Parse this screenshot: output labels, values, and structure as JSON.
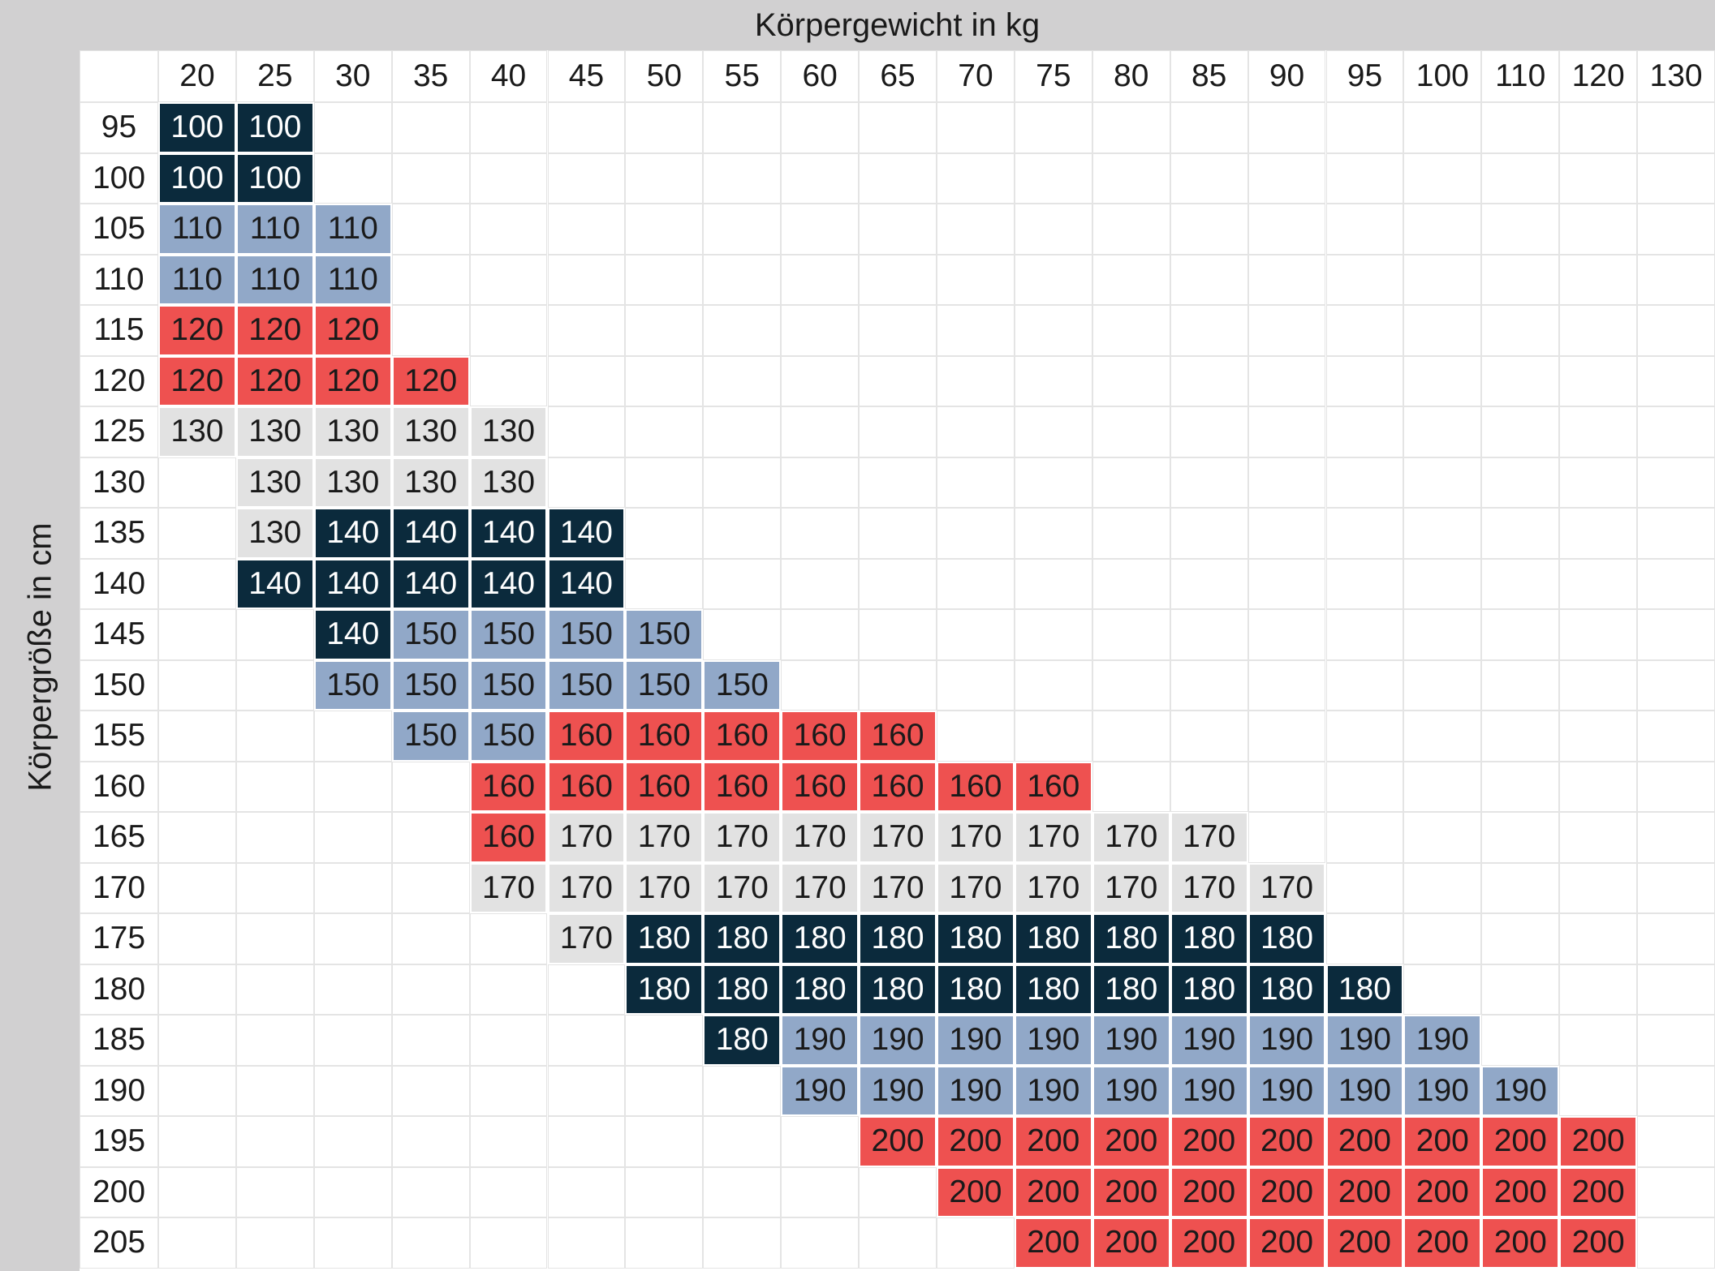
{
  "title_x": "Körpergewicht in kg",
  "title_y": "Körpergröße in cm",
  "palette": [
    {
      "fill": "#0b2a3c",
      "text": "#ffffff"
    },
    {
      "fill": "#91a8c8",
      "text": "#1a1a1a"
    },
    {
      "fill": "#ee5150",
      "text": "#1a1a1a"
    },
    {
      "fill": "#e2e2e2",
      "text": "#1a1a1a"
    }
  ],
  "table": {
    "columns": [
      "20",
      "25",
      "30",
      "35",
      "40",
      "45",
      "50",
      "55",
      "60",
      "65",
      "70",
      "75",
      "80",
      "85",
      "90",
      "95",
      "100",
      "110",
      "120",
      "130"
    ],
    "rows": [
      {
        "label": "95",
        "cells": [
          100,
          100,
          null,
          null,
          null,
          null,
          null,
          null,
          null,
          null,
          null,
          null,
          null,
          null,
          null,
          null,
          null,
          null,
          null,
          null
        ]
      },
      {
        "label": "100",
        "cells": [
          100,
          100,
          null,
          null,
          null,
          null,
          null,
          null,
          null,
          null,
          null,
          null,
          null,
          null,
          null,
          null,
          null,
          null,
          null,
          null
        ]
      },
      {
        "label": "105",
        "cells": [
          110,
          110,
          110,
          null,
          null,
          null,
          null,
          null,
          null,
          null,
          null,
          null,
          null,
          null,
          null,
          null,
          null,
          null,
          null,
          null
        ]
      },
      {
        "label": "110",
        "cells": [
          110,
          110,
          110,
          null,
          null,
          null,
          null,
          null,
          null,
          null,
          null,
          null,
          null,
          null,
          null,
          null,
          null,
          null,
          null,
          null
        ]
      },
      {
        "label": "115",
        "cells": [
          120,
          120,
          120,
          null,
          null,
          null,
          null,
          null,
          null,
          null,
          null,
          null,
          null,
          null,
          null,
          null,
          null,
          null,
          null,
          null
        ]
      },
      {
        "label": "120",
        "cells": [
          120,
          120,
          120,
          120,
          null,
          null,
          null,
          null,
          null,
          null,
          null,
          null,
          null,
          null,
          null,
          null,
          null,
          null,
          null,
          null
        ]
      },
      {
        "label": "125",
        "cells": [
          130,
          130,
          130,
          130,
          130,
          null,
          null,
          null,
          null,
          null,
          null,
          null,
          null,
          null,
          null,
          null,
          null,
          null,
          null,
          null
        ]
      },
      {
        "label": "130",
        "cells": [
          null,
          130,
          130,
          130,
          130,
          null,
          null,
          null,
          null,
          null,
          null,
          null,
          null,
          null,
          null,
          null,
          null,
          null,
          null,
          null
        ]
      },
      {
        "label": "135",
        "cells": [
          null,
          130,
          140,
          140,
          140,
          140,
          null,
          null,
          null,
          null,
          null,
          null,
          null,
          null,
          null,
          null,
          null,
          null,
          null,
          null
        ]
      },
      {
        "label": "140",
        "cells": [
          null,
          140,
          140,
          140,
          140,
          140,
          null,
          null,
          null,
          null,
          null,
          null,
          null,
          null,
          null,
          null,
          null,
          null,
          null,
          null
        ]
      },
      {
        "label": "145",
        "cells": [
          null,
          null,
          140,
          150,
          150,
          150,
          150,
          null,
          null,
          null,
          null,
          null,
          null,
          null,
          null,
          null,
          null,
          null,
          null,
          null
        ]
      },
      {
        "label": "150",
        "cells": [
          null,
          null,
          150,
          150,
          150,
          150,
          150,
          150,
          null,
          null,
          null,
          null,
          null,
          null,
          null,
          null,
          null,
          null,
          null,
          null
        ]
      },
      {
        "label": "155",
        "cells": [
          null,
          null,
          null,
          150,
          150,
          160,
          160,
          160,
          160,
          160,
          null,
          null,
          null,
          null,
          null,
          null,
          null,
          null,
          null,
          null
        ]
      },
      {
        "label": "160",
        "cells": [
          null,
          null,
          null,
          null,
          160,
          160,
          160,
          160,
          160,
          160,
          160,
          160,
          null,
          null,
          null,
          null,
          null,
          null,
          null,
          null
        ]
      },
      {
        "label": "165",
        "cells": [
          null,
          null,
          null,
          null,
          160,
          170,
          170,
          170,
          170,
          170,
          170,
          170,
          170,
          170,
          null,
          null,
          null,
          null,
          null,
          null
        ]
      },
      {
        "label": "170",
        "cells": [
          null,
          null,
          null,
          null,
          170,
          170,
          170,
          170,
          170,
          170,
          170,
          170,
          170,
          170,
          170,
          null,
          null,
          null,
          null,
          null
        ]
      },
      {
        "label": "175",
        "cells": [
          null,
          null,
          null,
          null,
          null,
          170,
          180,
          180,
          180,
          180,
          180,
          180,
          180,
          180,
          180,
          null,
          null,
          null,
          null,
          null
        ]
      },
      {
        "label": "180",
        "cells": [
          null,
          null,
          null,
          null,
          null,
          null,
          180,
          180,
          180,
          180,
          180,
          180,
          180,
          180,
          180,
          180,
          null,
          null,
          null,
          null
        ]
      },
      {
        "label": "185",
        "cells": [
          null,
          null,
          null,
          null,
          null,
          null,
          null,
          180,
          190,
          190,
          190,
          190,
          190,
          190,
          190,
          190,
          190,
          null,
          null,
          null
        ]
      },
      {
        "label": "190",
        "cells": [
          null,
          null,
          null,
          null,
          null,
          null,
          null,
          null,
          190,
          190,
          190,
          190,
          190,
          190,
          190,
          190,
          190,
          190,
          null,
          null
        ]
      },
      {
        "label": "195",
        "cells": [
          null,
          null,
          null,
          null,
          null,
          null,
          null,
          null,
          null,
          200,
          200,
          200,
          200,
          200,
          200,
          200,
          200,
          200,
          200,
          null
        ]
      },
      {
        "label": "200",
        "cells": [
          null,
          null,
          null,
          null,
          null,
          null,
          null,
          null,
          null,
          null,
          200,
          200,
          200,
          200,
          200,
          200,
          200,
          200,
          200,
          null
        ]
      },
      {
        "label": "205",
        "cells": [
          null,
          null,
          null,
          null,
          null,
          null,
          null,
          null,
          null,
          null,
          null,
          200,
          200,
          200,
          200,
          200,
          200,
          200,
          200,
          null
        ]
      }
    ]
  }
}
